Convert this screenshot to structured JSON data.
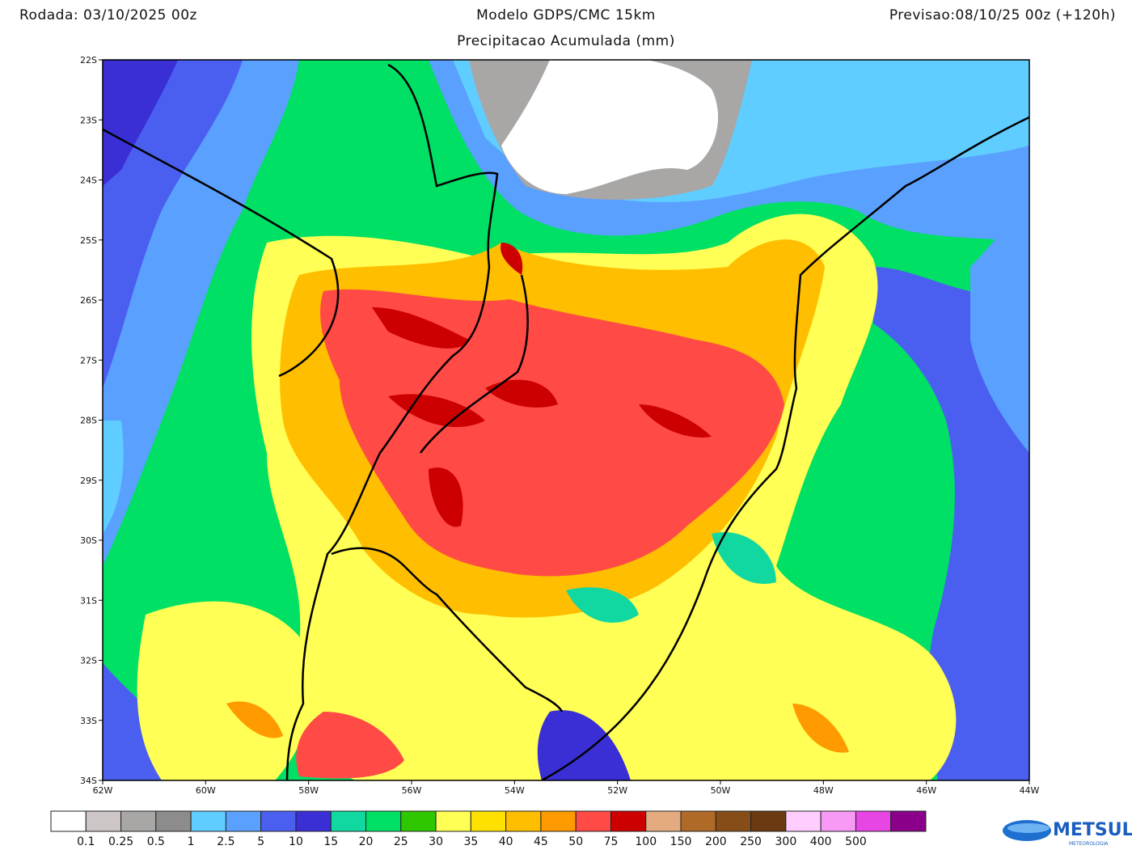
{
  "header": {
    "left": "Rodada: 03/10/2025 00z",
    "center": "Modelo GDPS/CMC 15km",
    "right": "Previsao:08/10/25 00z (+120h)",
    "subtitle": "Precipitacao Acumulada (mm)"
  },
  "map": {
    "lat_labels": [
      "22S",
      "23S",
      "24S",
      "25S",
      "26S",
      "27S",
      "28S",
      "29S",
      "30S",
      "31S",
      "32S",
      "33S",
      "34S"
    ],
    "lon_labels": [
      "62W",
      "60W",
      "58W",
      "56W",
      "54W",
      "52W",
      "50W",
      "48W",
      "46W",
      "44W"
    ]
  },
  "colorbar": {
    "colors": [
      "#ffffff",
      "#cdc6c6",
      "#a9a6a6",
      "#8c8c8c",
      "#5fcdff",
      "#5aa0ff",
      "#4a5ff0",
      "#3a2fd4",
      "#10d8a0",
      "#00e064",
      "#2fc800",
      "#ffff55",
      "#ffe100",
      "#ffbe00",
      "#ff9a00",
      "#ff4a46",
      "#cc0000",
      "#e4aa80",
      "#b06a28",
      "#874d18",
      "#6b3a10",
      "#ffcdff",
      "#f79af5",
      "#e845e5",
      "#8a008a"
    ],
    "labels": [
      "0.1",
      "0.25",
      "0.5",
      "1",
      "2.5",
      "5",
      "10",
      "15",
      "20",
      "25",
      "30",
      "35",
      "40",
      "45",
      "50",
      "75",
      "100",
      "150",
      "200",
      "250",
      "300",
      "400",
      "500"
    ]
  },
  "logo": {
    "name": "METSUL",
    "tagline": "METEOROLOGIA"
  }
}
